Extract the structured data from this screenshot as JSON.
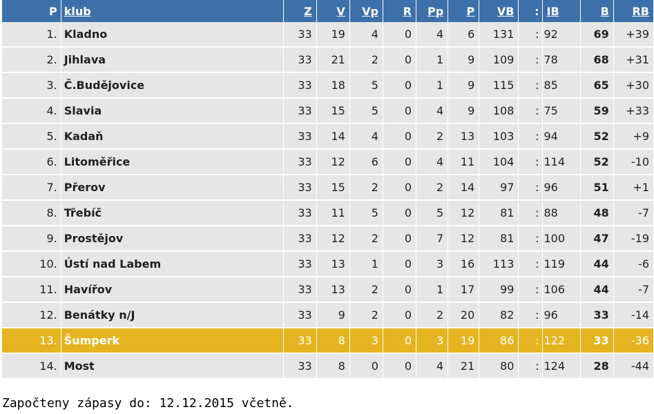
{
  "headers": {
    "p": "P",
    "klub": "klub",
    "z": "Z",
    "v": "V",
    "vp": "Vp",
    "r": "R",
    "pp": "Pp",
    "prohry": "P",
    "vb": "VB",
    "colon": ":",
    "ib": "IB",
    "b": "B",
    "rb": "RB"
  },
  "rows": [
    {
      "pos": "1.",
      "club": "Kladno",
      "z": "33",
      "v": "19",
      "vp": "4",
      "r": "0",
      "pp": "4",
      "p": "6",
      "vb": "131",
      "colon": ":",
      "ib": "92",
      "b": "69",
      "rb": "+39"
    },
    {
      "pos": "2.",
      "club": "Jihlava",
      "z": "33",
      "v": "21",
      "vp": "2",
      "r": "0",
      "pp": "1",
      "p": "9",
      "vb": "109",
      "colon": ":",
      "ib": "78",
      "b": "68",
      "rb": "+31"
    },
    {
      "pos": "3.",
      "club": "Č.Budějovice",
      "z": "33",
      "v": "18",
      "vp": "5",
      "r": "0",
      "pp": "1",
      "p": "9",
      "vb": "115",
      "colon": ":",
      "ib": "85",
      "b": "65",
      "rb": "+30"
    },
    {
      "pos": "4.",
      "club": "Slavia",
      "z": "33",
      "v": "15",
      "vp": "5",
      "r": "0",
      "pp": "4",
      "p": "9",
      "vb": "108",
      "colon": ":",
      "ib": "75",
      "b": "59",
      "rb": "+33"
    },
    {
      "pos": "5.",
      "club": "Kadaň",
      "z": "33",
      "v": "14",
      "vp": "4",
      "r": "0",
      "pp": "2",
      "p": "13",
      "vb": "103",
      "colon": ":",
      "ib": "94",
      "b": "52",
      "rb": "+9"
    },
    {
      "pos": "6.",
      "club": "Litoměřice",
      "z": "33",
      "v": "12",
      "vp": "6",
      "r": "0",
      "pp": "4",
      "p": "11",
      "vb": "104",
      "colon": ":",
      "ib": "114",
      "b": "52",
      "rb": "-10"
    },
    {
      "pos": "7.",
      "club": "Přerov",
      "z": "33",
      "v": "15",
      "vp": "2",
      "r": "0",
      "pp": "2",
      "p": "14",
      "vb": "97",
      "colon": ":",
      "ib": "96",
      "b": "51",
      "rb": "+1"
    },
    {
      "pos": "8.",
      "club": "Třebíč",
      "z": "33",
      "v": "11",
      "vp": "5",
      "r": "0",
      "pp": "5",
      "p": "12",
      "vb": "81",
      "colon": ":",
      "ib": "88",
      "b": "48",
      "rb": "-7"
    },
    {
      "pos": "9.",
      "club": "Prostějov",
      "z": "33",
      "v": "12",
      "vp": "2",
      "r": "0",
      "pp": "7",
      "p": "12",
      "vb": "81",
      "colon": ":",
      "ib": "100",
      "b": "47",
      "rb": "-19"
    },
    {
      "pos": "10.",
      "club": "Ústí nad Labem",
      "z": "33",
      "v": "13",
      "vp": "1",
      "r": "0",
      "pp": "3",
      "p": "16",
      "vb": "113",
      "colon": ":",
      "ib": "119",
      "b": "44",
      "rb": "-6"
    },
    {
      "pos": "11.",
      "club": "Havířov",
      "z": "33",
      "v": "13",
      "vp": "2",
      "r": "0",
      "pp": "1",
      "p": "17",
      "vb": "99",
      "colon": ":",
      "ib": "106",
      "b": "44",
      "rb": "-7"
    },
    {
      "pos": "12.",
      "club": "Benátky n/J",
      "z": "33",
      "v": "9",
      "vp": "2",
      "r": "0",
      "pp": "2",
      "p": "20",
      "vb": "82",
      "colon": ":",
      "ib": "96",
      "b": "33",
      "rb": "-14"
    },
    {
      "pos": "13.",
      "club": "Šumperk",
      "z": "33",
      "v": "8",
      "vp": "3",
      "r": "0",
      "pp": "3",
      "p": "19",
      "vb": "86",
      "colon": ":",
      "ib": "122",
      "b": "33",
      "rb": "-36",
      "highlight": true
    },
    {
      "pos": "14.",
      "club": "Most",
      "z": "33",
      "v": "8",
      "vp": "0",
      "r": "0",
      "pp": "4",
      "p": "21",
      "vb": "80",
      "colon": ":",
      "ib": "124",
      "b": "28",
      "rb": "-44"
    }
  ],
  "footer": {
    "note": "Započteny zápasy do: 12.12.2015 včetně."
  },
  "colors": {
    "header_bg": "#3d6fa8",
    "row_bg": "#e6e6e6",
    "highlight_bg": "#e4b521"
  }
}
